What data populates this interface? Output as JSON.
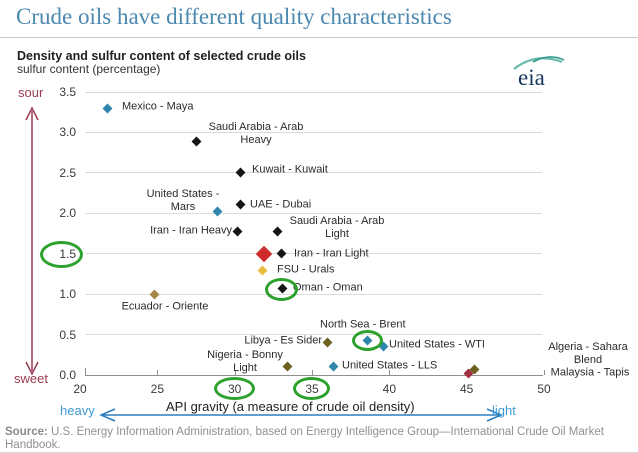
{
  "page": {
    "title": "Crude oils have different quality characteristics"
  },
  "logo": {
    "text": "eia"
  },
  "chart": {
    "subtitle": "Density and sulfur content of selected crude oils",
    "y_axis_label": "sulfur content (percentage)",
    "x_axis_label": "API gravity (a measure of crude oil density)",
    "sour_label": "sour",
    "sweet_label": "sweet",
    "heavy_label": "heavy",
    "light_label": "light"
  },
  "chart_data": {
    "type": "scatter",
    "title": "Density and sulfur content of selected crude oils",
    "xlabel": "API gravity (a measure of crude oil density)",
    "ylabel": "sulfur content (percentage)",
    "xlim": [
      20,
      50
    ],
    "ylim": [
      0,
      3.5
    ],
    "x_ticks": [
      "20",
      "25",
      "30",
      "35",
      "40",
      "45",
      "50"
    ],
    "y_ticks": [
      "0.0",
      "0.5",
      "1.0",
      "1.5",
      "2.0",
      "2.5",
      "3.0",
      "3.5"
    ],
    "grid": true,
    "points": [
      {
        "id": "maya",
        "label_lines": [
          "Mexico - Maya"
        ],
        "api_gravity": 21.8,
        "sulfur_percent": 3.3,
        "color": "blue"
      },
      {
        "id": "arab-heavy",
        "label_lines": [
          "Saudi Arabia - Arab",
          "Heavy"
        ],
        "api_gravity": 27.5,
        "sulfur_percent": 2.89,
        "color": "black"
      },
      {
        "id": "kuwait",
        "label_lines": [
          "Kuwait - Kuwait"
        ],
        "api_gravity": 30.4,
        "sulfur_percent": 2.51,
        "color": "black"
      },
      {
        "id": "mars",
        "label_lines": [
          "United States -",
          "Mars"
        ],
        "api_gravity": 28.9,
        "sulfur_percent": 2.02,
        "color": "blue"
      },
      {
        "id": "dubai",
        "label_lines": [
          "UAE - Dubai"
        ],
        "api_gravity": 30.4,
        "sulfur_percent": 2.11,
        "color": "black"
      },
      {
        "id": "iran-heavy",
        "label_lines": [
          "Iran - Iran Heavy"
        ],
        "api_gravity": 30.2,
        "sulfur_percent": 1.77,
        "color": "black"
      },
      {
        "id": "arab-light",
        "label_lines": [
          "Saudi Arabia - Arab",
          "Light"
        ],
        "api_gravity": 32.8,
        "sulfur_percent": 1.77,
        "color": "black"
      },
      {
        "id": "iran-light",
        "label_lines": [
          "Iran - Iran Light"
        ],
        "api_gravity": 33.0,
        "sulfur_percent": 1.5,
        "color": "black"
      },
      {
        "id": "urals",
        "label_lines": [
          "FSU - Urals"
        ],
        "api_gravity": 31.8,
        "sulfur_percent": 1.29,
        "color": "gold"
      },
      {
        "id": "oman",
        "label_lines": [
          "Oman - Oman"
        ],
        "api_gravity": 33.1,
        "sulfur_percent": 1.07,
        "color": "black"
      },
      {
        "id": "oriente",
        "label_lines": [
          "Ecuador - Oriente"
        ],
        "api_gravity": 24.8,
        "sulfur_percent": 1.0,
        "color": "tan"
      },
      {
        "id": "es-sider",
        "label_lines": [
          "Libya - Es Sider"
        ],
        "api_gravity": 36.0,
        "sulfur_percent": 0.4,
        "color": "olive"
      },
      {
        "id": "brent",
        "label_lines": [
          "North Sea - Brent"
        ],
        "api_gravity": 38.6,
        "sulfur_percent": 0.43,
        "color": "blue"
      },
      {
        "id": "wti",
        "label_lines": [
          "United States - WTI"
        ],
        "api_gravity": 39.6,
        "sulfur_percent": 0.35,
        "color": "blue"
      },
      {
        "id": "bonny",
        "label_lines": [
          "Nigeria - Bonny",
          "Light"
        ],
        "api_gravity": 33.4,
        "sulfur_percent": 0.1,
        "color": "olive"
      },
      {
        "id": "lls",
        "label_lines": [
          "United States - LLS"
        ],
        "api_gravity": 36.4,
        "sulfur_percent": 0.11,
        "color": "blue"
      },
      {
        "id": "sahara",
        "label_lines": [
          "Algeria - Sahara",
          "Blend"
        ],
        "api_gravity": 45.5,
        "sulfur_percent": 0.07,
        "color": "olive"
      },
      {
        "id": "tapis",
        "label_lines": [
          "Malaysia - Tapis"
        ],
        "api_gravity": 45.1,
        "sulfur_percent": 0.02,
        "color": "maroon"
      }
    ],
    "annotations": {
      "green_circles": [
        "y-axis-label-1.5",
        "oman-point",
        "brent-wti-points",
        "x-axis-label-30",
        "x-axis-label-35"
      ],
      "red_cross": {
        "api_gravity": 31.9,
        "sulfur_percent": 1.5
      }
    }
  },
  "marker_colors": {
    "blue": "#2e86ad",
    "black": "#151515",
    "gold": "#e9bc3f",
    "tan": "#a8874a",
    "olive": "#6e611f",
    "maroon": "#9e3040"
  },
  "accent_colors": {
    "title_blue": "#4b88b0",
    "annotation_green": "#2ca12c",
    "red_cross": "#cf2b2b",
    "sour_sweet_red": "#9a3b52",
    "heavy_light_blue": "#3d9bd4",
    "arrow_blue": "#2d7fc1"
  },
  "source": {
    "label": "Source:",
    "text": " U.S. Energy Information Administration, based on Energy Intelligence Group—International Crude Oil Market Handbook."
  }
}
